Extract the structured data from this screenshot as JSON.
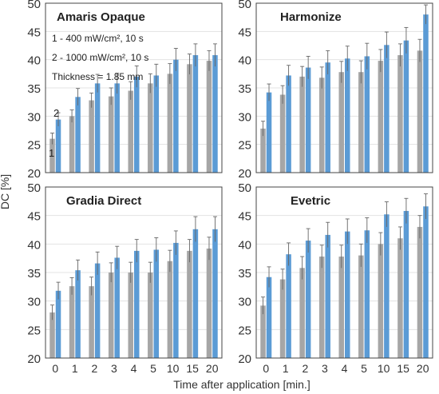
{
  "figure": {
    "ylabel": "DC [%]",
    "xlabel": "Time after application [min.]",
    "colors": {
      "series1": "#a6a6a6",
      "series2": "#5b9bd5",
      "frame": "#444444",
      "grid": "#e3e3e3",
      "error": "#666666"
    }
  },
  "chart_data": [
    {
      "type": "bar",
      "title": "Amaris Opaque",
      "categories": [
        "0",
        "1",
        "2",
        "3",
        "4",
        "5",
        "10",
        "15",
        "20"
      ],
      "ylim": [
        20,
        50
      ],
      "yticks": [
        20,
        25,
        30,
        35,
        40,
        45,
        50
      ],
      "grid": true,
      "annotations": [
        "1 - 400 mW/cm², 10 s",
        "2 - 1000 mW/cm², 10 s",
        "Thickness = 1.85 mm"
      ],
      "bar_labels": [
        "1",
        "2"
      ],
      "series": [
        {
          "values": [
            26.0,
            30.0,
            32.8,
            33.5,
            34.5,
            35.8,
            37.5,
            39.2,
            39.8
          ],
          "errors": [
            1.0,
            1.1,
            1.3,
            1.5,
            1.6,
            1.7,
            1.8,
            1.8,
            1.8
          ]
        },
        {
          "values": [
            29.4,
            33.4,
            35.8,
            35.8,
            37.0,
            37.2,
            40.0,
            40.8,
            40.8
          ],
          "errors": [
            1.2,
            1.5,
            1.6,
            1.8,
            1.9,
            2.0,
            2.0,
            2.0,
            2.0
          ]
        }
      ]
    },
    {
      "type": "bar",
      "title": "Harmonize",
      "categories": [
        "0",
        "1",
        "2",
        "3",
        "4",
        "5",
        "10",
        "15",
        "20"
      ],
      "ylim": [
        20,
        50
      ],
      "yticks": [
        20,
        25,
        30,
        35,
        40,
        45,
        50
      ],
      "grid": true,
      "series": [
        {
          "values": [
            27.8,
            33.8,
            37.0,
            36.8,
            37.8,
            37.8,
            39.8,
            40.8,
            41.6
          ],
          "errors": [
            1.3,
            1.6,
            1.8,
            1.9,
            1.9,
            2.0,
            2.0,
            2.0,
            2.0
          ]
        },
        {
          "values": [
            34.2,
            37.2,
            38.6,
            39.5,
            40.2,
            40.6,
            42.6,
            43.4,
            48.0
          ],
          "errors": [
            1.5,
            1.8,
            2.0,
            2.1,
            2.2,
            2.3,
            2.3,
            2.3,
            1.7
          ]
        }
      ]
    },
    {
      "type": "bar",
      "title": "Gradia Direct",
      "categories": [
        "0",
        "1",
        "2",
        "3",
        "4",
        "5",
        "10",
        "15",
        "20"
      ],
      "ylim": [
        20,
        50
      ],
      "yticks": [
        20,
        25,
        30,
        35,
        40,
        45,
        50
      ],
      "grid": true,
      "series": [
        {
          "values": [
            28.0,
            32.6,
            32.6,
            35.0,
            35.0,
            35.0,
            37.0,
            38.8,
            39.2
          ],
          "errors": [
            1.3,
            1.5,
            1.6,
            1.7,
            1.8,
            1.8,
            1.9,
            2.0,
            2.0
          ]
        },
        {
          "values": [
            31.8,
            35.4,
            36.6,
            37.6,
            38.8,
            39.0,
            40.2,
            42.6,
            42.6
          ],
          "errors": [
            1.5,
            1.8,
            2.0,
            2.0,
            2.0,
            2.1,
            2.1,
            2.2,
            2.2
          ]
        }
      ]
    },
    {
      "type": "bar",
      "title": "Evetric",
      "categories": [
        "0",
        "1",
        "2",
        "3",
        "4",
        "5",
        "10",
        "15",
        "20"
      ],
      "ylim": [
        20,
        50
      ],
      "yticks": [
        20,
        25,
        30,
        35,
        40,
        45,
        50
      ],
      "grid": true,
      "series": [
        {
          "values": [
            29.2,
            33.8,
            35.8,
            37.8,
            37.8,
            38.0,
            40.0,
            41.0,
            43.0
          ],
          "errors": [
            1.5,
            1.8,
            2.0,
            2.0,
            2.0,
            2.0,
            2.0,
            2.0,
            2.0
          ]
        },
        {
          "values": [
            34.2,
            38.2,
            40.6,
            41.6,
            42.2,
            42.4,
            45.2,
            45.8,
            46.6
          ],
          "errors": [
            1.8,
            2.0,
            2.1,
            2.2,
            2.2,
            2.2,
            2.2,
            2.2,
            2.2
          ]
        }
      ]
    }
  ]
}
